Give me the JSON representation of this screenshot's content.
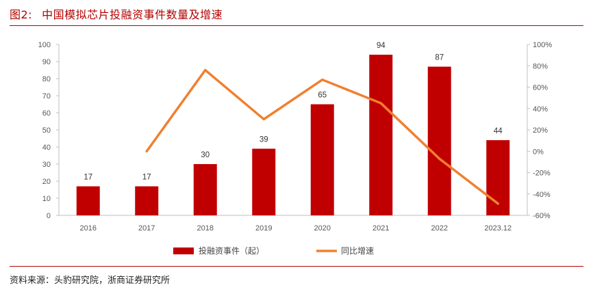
{
  "figure": {
    "number": "图2:",
    "title": "中国模拟芯片投融资事件数量及增速",
    "source": "资料来源：头豹研究院，浙商证券研究所"
  },
  "colors": {
    "bar": "#c00000",
    "line": "#f08030",
    "rule": "#b30000"
  },
  "chart_data": {
    "type": "bar",
    "categories": [
      "2016",
      "2017",
      "2018",
      "2019",
      "2020",
      "2021",
      "2022",
      "2023.12"
    ],
    "series": [
      {
        "name": "投融资事件（起）",
        "type": "bar",
        "axis": "left",
        "values": [
          17,
          17,
          30,
          39,
          65,
          94,
          87,
          44
        ]
      },
      {
        "name": "同比增速",
        "type": "line",
        "axis": "right",
        "values": [
          null,
          0,
          76,
          30,
          67,
          45,
          -7,
          -49
        ]
      }
    ],
    "y_left": {
      "min": 0,
      "max": 100,
      "ticks": [
        "0",
        "10",
        "20",
        "30",
        "40",
        "50",
        "60",
        "70",
        "80",
        "90",
        "100"
      ]
    },
    "y_right": {
      "min": -60,
      "max": 100,
      "ticks": [
        "-60%",
        "-40%",
        "-20%",
        "0%",
        "20%",
        "40%",
        "60%",
        "80%",
        "100%"
      ]
    },
    "legend": {
      "placement": "bottom-center",
      "bar_label": "投融资事件（起）",
      "line_label": "同比增速"
    },
    "data_labels": [
      "17",
      "17",
      "30",
      "39",
      "65",
      "94",
      "87",
      "44"
    ],
    "grid": false
  }
}
